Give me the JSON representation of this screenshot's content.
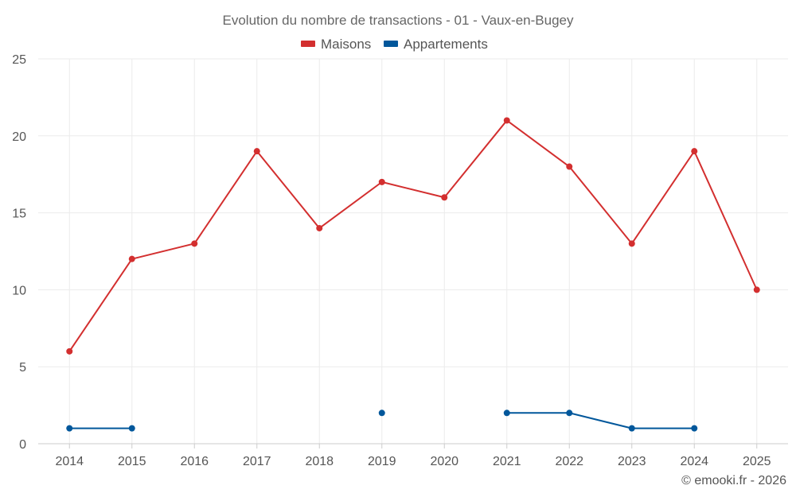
{
  "chart_data": {
    "type": "line",
    "title": "Evolution du nombre de transactions - 01 - Vaux-en-Bugey",
    "categories": [
      "2014",
      "2015",
      "2016",
      "2017",
      "2018",
      "2019",
      "2020",
      "2021",
      "2022",
      "2023",
      "2024",
      "2025"
    ],
    "series": [
      {
        "name": "Maisons",
        "color": "#d32f2f",
        "values": [
          6,
          12,
          13,
          19,
          14,
          17,
          16,
          21,
          18,
          13,
          19,
          10
        ]
      },
      {
        "name": "Appartements",
        "color": "#01579b",
        "values": [
          1,
          1,
          null,
          null,
          null,
          2,
          null,
          2,
          2,
          1,
          1,
          null
        ]
      }
    ],
    "ylim": [
      0,
      25
    ],
    "yticks": [
      0,
      5,
      10,
      15,
      20,
      25
    ],
    "grid": true,
    "legend": "top-center"
  },
  "credit": "© emooki.fr - 2026"
}
